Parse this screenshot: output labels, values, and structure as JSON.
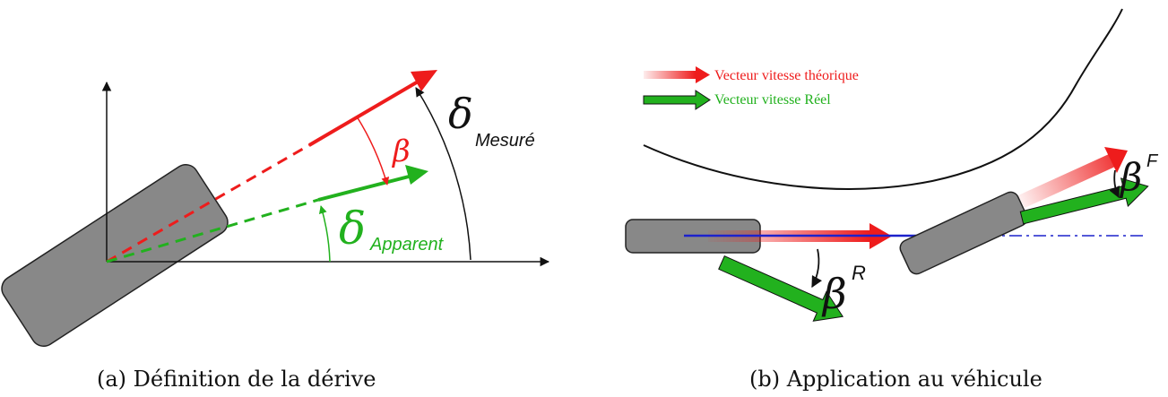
{
  "colors": {
    "red": "#ee1c1c",
    "green": "#22b11e",
    "blue": "#1c22cc",
    "tire": "#888888",
    "black": "#111111"
  },
  "panel_a": {
    "caption": "(a) Définition de la dérive",
    "beta": "β",
    "delta_measured": "δ",
    "delta_measured_sub": "Mesuré",
    "delta_apparent": "δ",
    "delta_apparent_sub": "Apparent"
  },
  "panel_b": {
    "caption": "(b) Application au véhicule",
    "legend_theoretical": "Vecteur vitesse théorique",
    "legend_real": "Vecteur vitesse Réel",
    "beta_rear": "β",
    "beta_rear_sup": "R",
    "beta_front": "β",
    "beta_front_sup": "F"
  }
}
